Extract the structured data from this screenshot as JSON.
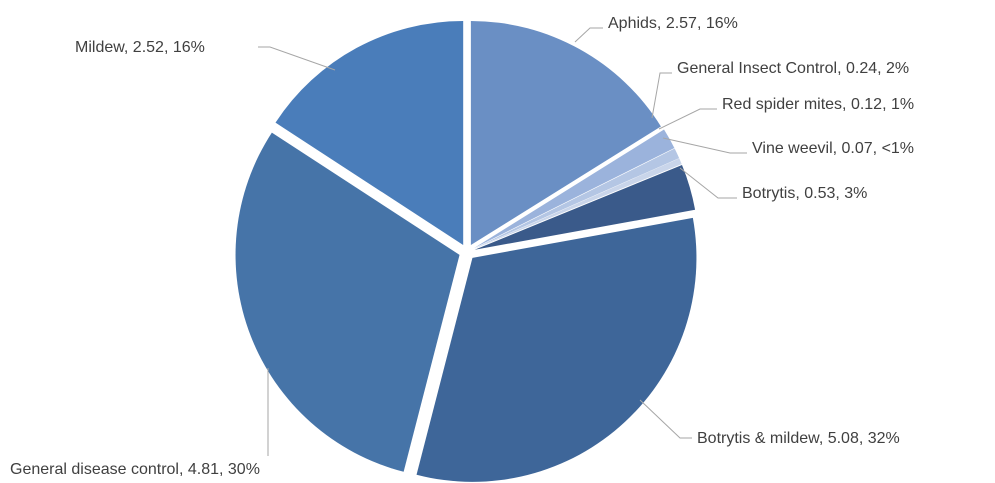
{
  "chart_data": {
    "type": "pie",
    "categories": [
      "Aphids",
      "General Insect Control",
      "Red spider mites",
      "Vine weevil",
      "Botrytis",
      "Botrytis & mildew",
      "General disease control",
      "Mildew"
    ],
    "values": [
      2.57,
      0.24,
      0.12,
      0.07,
      0.53,
      5.08,
      4.81,
      2.52
    ],
    "percent_labels": [
      "16%",
      "2%",
      "1%",
      "<1%",
      "3%",
      "32%",
      "30%",
      "16%"
    ],
    "label_separator": ", ",
    "colors": [
      "#6a8fc4",
      "#9bb3dc",
      "#b4c6e4",
      "#c9d5ea",
      "#3a5a8a",
      "#3e6699",
      "#4674a8",
      "#4a7dba"
    ]
  }
}
